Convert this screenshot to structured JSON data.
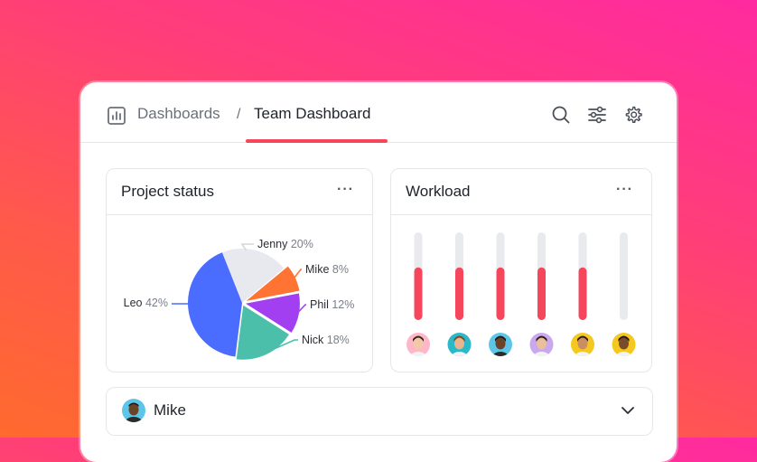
{
  "breadcrumb": {
    "parent": "Dashboards",
    "separator": "/",
    "current": "Team Dashboard"
  },
  "toolbar": {
    "icons": [
      "search-icon",
      "filter-sliders-icon",
      "gear-icon"
    ]
  },
  "colors": {
    "accent": "#f5465c",
    "background_gradient": [
      "#ff2aa0",
      "#ff6a2e"
    ]
  },
  "project_status": {
    "title": "Project status",
    "more": "···"
  },
  "workload": {
    "title": "Workload",
    "more": "···"
  },
  "chart_data": [
    {
      "type": "pie",
      "title": "",
      "slices": [
        {
          "name": "Jenny",
          "label": "20%",
          "value": 20,
          "color": "#e8e9ef"
        },
        {
          "name": "Mike",
          "label": "8%",
          "value": 8,
          "color": "#ff7433"
        },
        {
          "name": "Phil",
          "label": "12%",
          "value": 12,
          "color": "#a23ff0"
        },
        {
          "name": "Nick",
          "label": "18%",
          "value": 18,
          "color": "#4bbfaa"
        },
        {
          "name": "Leo",
          "label": "42%",
          "value": 42,
          "color": "#4a6cff"
        }
      ]
    },
    {
      "type": "bar",
      "title": "",
      "orientation": "vertical",
      "ylim": [
        0,
        1
      ],
      "values": [
        0.6,
        0.6,
        0.6,
        0.6,
        0.6,
        0
      ],
      "bar_color": "#f5465c",
      "track_color": "#e9eaee"
    }
  ],
  "team_row": {
    "name": "Mike",
    "chevron": "chevron-down-icon"
  }
}
